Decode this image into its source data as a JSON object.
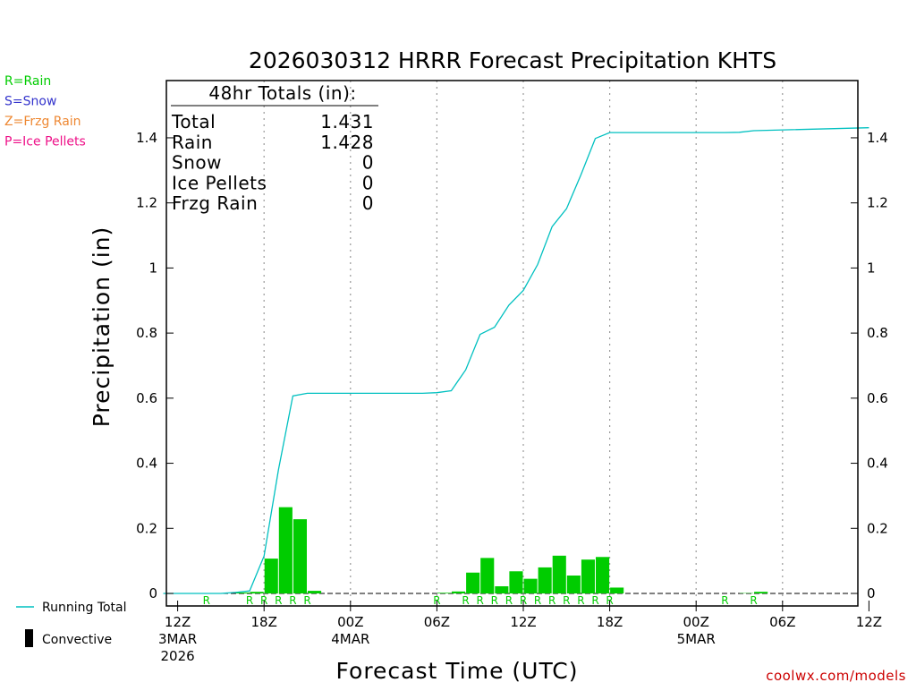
{
  "chart_data": {
    "type": "bar",
    "title": "2026030312 HRRR Forecast Precipitation KHTS",
    "xlabel": "Forecast Time (UTC)",
    "ylabel": "Precipitation (in)",
    "ylim": [
      0,
      1.55
    ],
    "y_ticks": [
      0,
      0.2,
      0.4,
      0.6,
      0.8,
      1,
      1.2,
      1.4
    ],
    "y_tick_labels": [
      "0",
      "0.2",
      "0.4",
      "0.6",
      "0.8",
      "1",
      "1.2",
      "1.4"
    ],
    "xlim": [
      -1,
      48
    ],
    "x_ticks": [
      {
        "hour": 0,
        "lines": [
          "12Z",
          "3MAR",
          "2026"
        ]
      },
      {
        "hour": 6,
        "lines": [
          "18Z"
        ]
      },
      {
        "hour": 12,
        "lines": [
          "00Z",
          "4MAR"
        ]
      },
      {
        "hour": 18,
        "lines": [
          "06Z"
        ]
      },
      {
        "hour": 24,
        "lines": [
          "12Z"
        ]
      },
      {
        "hour": 30,
        "lines": [
          "18Z"
        ]
      },
      {
        "hour": 36,
        "lines": [
          "00Z",
          "5MAR"
        ]
      },
      {
        "hour": 42,
        "lines": [
          "06Z"
        ]
      },
      {
        "hour": 48,
        "lines": [
          "12Z"
        ]
      }
    ],
    "hourly_precip": {
      "name": "Convective",
      "color": "#00cc00",
      "values": [
        0,
        0,
        0,
        0,
        0.003,
        0.005,
        0.107,
        0.265,
        0.228,
        0.008,
        0,
        0,
        0,
        0,
        0,
        0,
        0,
        0,
        0.002,
        0.006,
        0.064,
        0.109,
        0.022,
        0.068,
        0.045,
        0.08,
        0.116,
        0.055,
        0.104,
        0.112,
        0.018,
        0,
        0,
        0,
        0,
        0,
        0,
        0,
        0,
        0.001,
        0.005,
        0,
        0,
        0,
        0,
        0,
        0,
        0
      ]
    },
    "running_total": {
      "name": "Running Total",
      "color": "#00c0c0",
      "points": [
        [
          -1,
          0
        ],
        [
          3,
          0
        ],
        [
          4,
          0.003
        ],
        [
          5,
          0.008
        ],
        [
          6,
          0.115
        ],
        [
          7,
          0.38
        ],
        [
          8,
          0.607
        ],
        [
          9,
          0.615
        ],
        [
          17,
          0.615
        ],
        [
          18,
          0.617
        ],
        [
          19,
          0.623
        ],
        [
          20,
          0.687
        ],
        [
          21,
          0.796
        ],
        [
          22,
          0.818
        ],
        [
          23,
          0.886
        ],
        [
          24,
          0.931
        ],
        [
          25,
          1.011
        ],
        [
          26,
          1.127
        ],
        [
          27,
          1.182
        ],
        [
          28,
          1.286
        ],
        [
          29,
          1.398
        ],
        [
          30,
          1.416
        ],
        [
          38,
          1.416
        ],
        [
          39,
          1.417
        ],
        [
          40,
          1.422
        ],
        [
          48,
          1.431
        ]
      ]
    },
    "precip_type_markers": {
      "hours": [
        2,
        5,
        6,
        7,
        8,
        9,
        18,
        20,
        21,
        22,
        23,
        24,
        25,
        26,
        27,
        28,
        29,
        30,
        38,
        40
      ],
      "label": "R"
    },
    "totals_box": {
      "heading": "48hr Totals (in):",
      "rows": [
        {
          "label": "Total",
          "value": "1.431"
        },
        {
          "label": "Rain",
          "value": "1.428"
        },
        {
          "label": "Snow",
          "value": "0"
        },
        {
          "label": "Ice Pellets",
          "value": "0"
        },
        {
          "label": "Frzg Rain",
          "value": "0"
        }
      ]
    },
    "type_legend": [
      {
        "text": "R=Rain",
        "color": "#00cc00"
      },
      {
        "text": "S=Snow",
        "color": "#3333cc"
      },
      {
        "text": "Z=Frzg Rain",
        "color": "#ee8833"
      },
      {
        "text": "P=Ice Pellets",
        "color": "#ee1188"
      }
    ],
    "series_legend": [
      {
        "text": "Running Total",
        "kind": "line",
        "color": "#00c0c0"
      },
      {
        "text": "Convective",
        "kind": "bar",
        "color": "#000000"
      }
    ],
    "credit": "coolwx.com/models",
    "grid": "vertical dotted at 6-hour intervals"
  }
}
